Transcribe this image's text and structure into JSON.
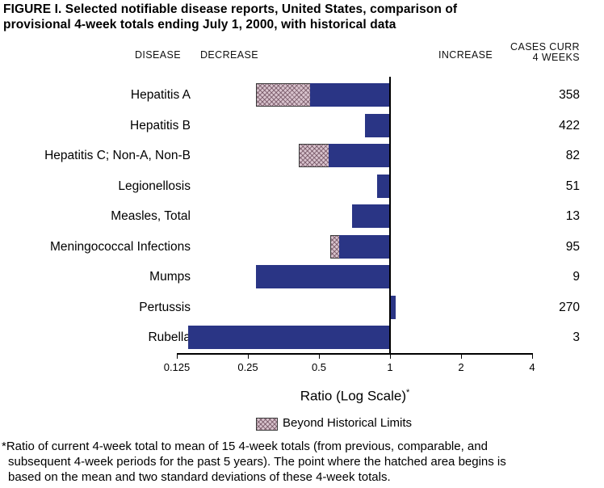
{
  "title": {
    "line1": "FIGURE I. Selected notifiable disease reports, United States, comparison of",
    "line2": "provisional 4-week totals ending July 1, 2000, with historical data"
  },
  "headers": {
    "disease": "DISEASE",
    "decrease": "DECREASE",
    "increase": "INCREASE",
    "cases_line1": "CASES CURR",
    "cases_line2": "4 WEEKS"
  },
  "chart_data": {
    "type": "bar",
    "orientation": "horizontal",
    "scale": "log2",
    "baseline_ratio": 1,
    "axis": {
      "label": "Ratio (Log Scale)",
      "label_superscript": "*",
      "ticks": [
        0.125,
        0.25,
        0.5,
        1,
        2,
        4
      ],
      "tick_labels": [
        "0.125",
        "0.25",
        "0.5",
        "1",
        "2",
        "4"
      ],
      "range": [
        0.125,
        4
      ]
    },
    "legend": {
      "hatched_label": "Beyond Historical Limits"
    },
    "colors": {
      "bar": "#2a3585",
      "beyond_limit_fill": "#d8c3cd",
      "axis": "#000000"
    },
    "rows": [
      {
        "disease": "Hepatitis A",
        "cases": "358",
        "ratio": 0.27,
        "beyond_limit_to": 0.46
      },
      {
        "disease": "Hepatitis B",
        "cases": "422",
        "ratio": 0.78,
        "beyond_limit_to": null
      },
      {
        "disease": "Hepatitis C; Non-A, Non-B",
        "cases": "82",
        "ratio": 0.41,
        "beyond_limit_to": 0.55
      },
      {
        "disease": "Legionellosis",
        "cases": "51",
        "ratio": 0.88,
        "beyond_limit_to": null
      },
      {
        "disease": "Measles, Total",
        "cases": "13",
        "ratio": 0.69,
        "beyond_limit_to": null
      },
      {
        "disease": "Meningococcal Infections",
        "cases": "95",
        "ratio": 0.56,
        "beyond_limit_to": 0.61
      },
      {
        "disease": "Mumps",
        "cases": "9",
        "ratio": 0.27,
        "beyond_limit_to": null
      },
      {
        "disease": "Pertussis",
        "cases": "270",
        "ratio": 1.06,
        "beyond_limit_to": null
      },
      {
        "disease": "Rubella",
        "cases": "3",
        "ratio": 0.14,
        "beyond_limit_to": null
      }
    ]
  },
  "footnote": {
    "line1": "*Ratio of current 4-week total to mean of 15 4-week totals (from previous, comparable, and",
    "line2": "subsequent 4-week periods for the past 5 years). The point where the hatched area begins is",
    "line3": "based on the mean and two standard deviations of these 4-week totals."
  }
}
